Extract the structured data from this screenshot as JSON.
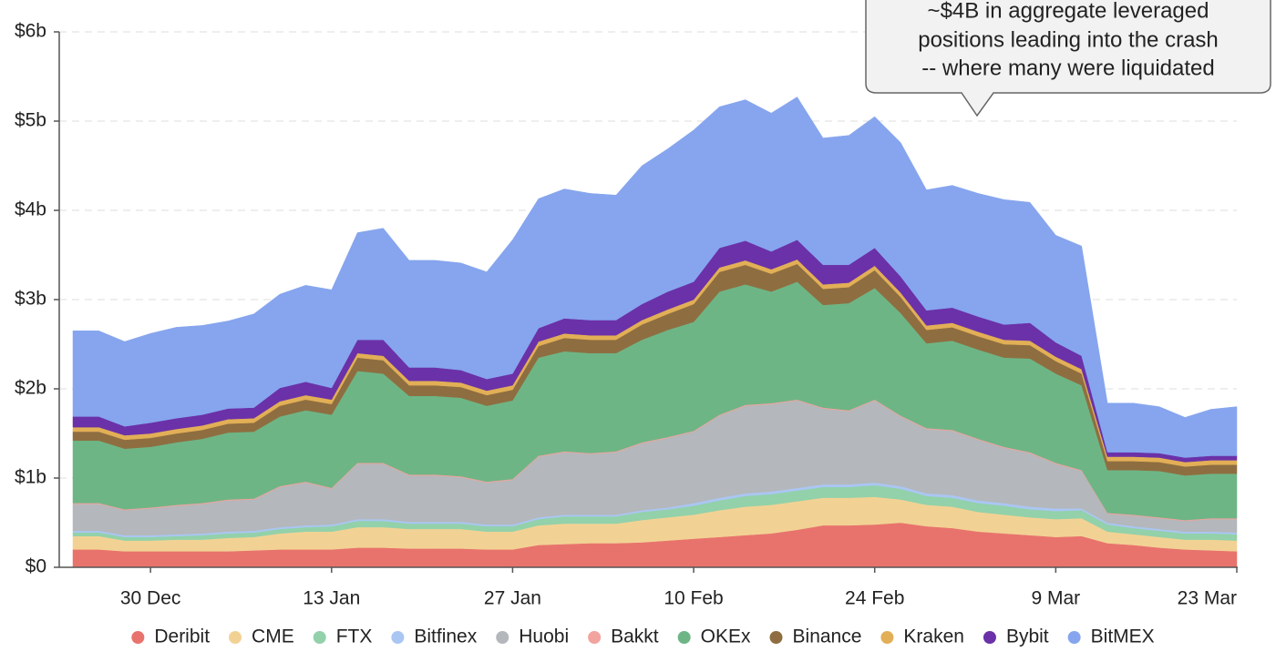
{
  "chart_data": {
    "type": "area",
    "stacked": true,
    "annotation": [
      "~$4B in aggregate leveraged",
      "positions leading into the crash",
      "-- where many were liquidated"
    ],
    "categories": [
      null,
      null,
      null,
      "30 Dec",
      null,
      null,
      null,
      null,
      null,
      null,
      "13 Jan",
      null,
      null,
      null,
      null,
      null,
      null,
      "27 Jan",
      null,
      null,
      null,
      null,
      null,
      null,
      "10 Feb",
      null,
      null,
      null,
      null,
      null,
      null,
      "24 Feb",
      null,
      null,
      null,
      null,
      null,
      null,
      "9 Mar",
      null,
      null,
      null,
      null,
      null,
      null,
      "23 Mar"
    ],
    "ylim": [
      0,
      6
    ],
    "yticks": [
      {
        "value": 0,
        "label": "$0"
      },
      {
        "value": 1,
        "label": "$1b"
      },
      {
        "value": 2,
        "label": "$2b"
      },
      {
        "value": 3,
        "label": "$3b"
      },
      {
        "value": 4,
        "label": "$4b"
      },
      {
        "value": 5,
        "label": "$5b"
      },
      {
        "value": 6,
        "label": "$6b"
      }
    ],
    "grid": true,
    "legend": "bottom",
    "series": [
      {
        "name": "Deribit",
        "color": "#e8736d",
        "values": [
          0.2,
          0.2,
          0.18,
          0.18,
          0.18,
          0.18,
          0.18,
          0.19,
          0.2,
          0.2,
          0.2,
          0.22,
          0.22,
          0.21,
          0.21,
          0.21,
          0.2,
          0.2,
          0.25,
          0.26,
          0.27,
          0.27,
          0.28,
          0.3,
          0.32,
          0.34,
          0.36,
          0.38,
          0.42,
          0.47,
          0.47,
          0.48,
          0.5,
          0.46,
          0.44,
          0.4,
          0.38,
          0.36,
          0.34,
          0.35,
          0.27,
          0.25,
          0.22,
          0.2,
          0.19,
          0.18
        ]
      },
      {
        "name": "CME",
        "color": "#f2d294",
        "values": [
          0.15,
          0.15,
          0.12,
          0.12,
          0.13,
          0.13,
          0.15,
          0.15,
          0.18,
          0.2,
          0.2,
          0.23,
          0.23,
          0.22,
          0.22,
          0.22,
          0.2,
          0.2,
          0.22,
          0.23,
          0.22,
          0.22,
          0.25,
          0.26,
          0.27,
          0.3,
          0.32,
          0.32,
          0.32,
          0.31,
          0.31,
          0.31,
          0.26,
          0.24,
          0.24,
          0.22,
          0.21,
          0.2,
          0.2,
          0.2,
          0.13,
          0.12,
          0.12,
          0.11,
          0.12,
          0.12
        ]
      },
      {
        "name": "FTX",
        "color": "#92d1aa",
        "values": [
          0.04,
          0.04,
          0.04,
          0.04,
          0.04,
          0.05,
          0.05,
          0.05,
          0.05,
          0.05,
          0.06,
          0.07,
          0.07,
          0.06,
          0.06,
          0.06,
          0.06,
          0.06,
          0.07,
          0.08,
          0.08,
          0.08,
          0.09,
          0.09,
          0.1,
          0.11,
          0.12,
          0.12,
          0.12,
          0.12,
          0.12,
          0.13,
          0.12,
          0.1,
          0.1,
          0.1,
          0.1,
          0.09,
          0.09,
          0.09,
          0.08,
          0.07,
          0.07,
          0.07,
          0.07,
          0.07
        ]
      },
      {
        "name": "Bitfinex",
        "color": "#aac6f2",
        "values": [
          0.02,
          0.02,
          0.02,
          0.02,
          0.02,
          0.02,
          0.02,
          0.02,
          0.02,
          0.02,
          0.02,
          0.02,
          0.02,
          0.02,
          0.02,
          0.02,
          0.02,
          0.02,
          0.02,
          0.02,
          0.02,
          0.02,
          0.02,
          0.02,
          0.03,
          0.03,
          0.03,
          0.03,
          0.03,
          0.03,
          0.03,
          0.03,
          0.03,
          0.03,
          0.03,
          0.03,
          0.03,
          0.03,
          0.03,
          0.02,
          0.02,
          0.02,
          0.02,
          0.02,
          0.02,
          0.02
        ]
      },
      {
        "name": "Huobi",
        "color": "#b4b7bb",
        "values": [
          0.3,
          0.3,
          0.28,
          0.3,
          0.32,
          0.33,
          0.35,
          0.35,
          0.45,
          0.48,
          0.4,
          0.62,
          0.62,
          0.52,
          0.52,
          0.5,
          0.47,
          0.5,
          0.68,
          0.7,
          0.68,
          0.7,
          0.75,
          0.78,
          0.8,
          0.92,
          0.98,
          0.98,
          0.98,
          0.85,
          0.82,
          0.92,
          0.78,
          0.72,
          0.72,
          0.68,
          0.62,
          0.6,
          0.5,
          0.42,
          0.1,
          0.12,
          0.12,
          0.12,
          0.14,
          0.15
        ]
      },
      {
        "name": "Bakkt",
        "color": "#f2a39d",
        "values": [
          0.01,
          0.01,
          0.01,
          0.01,
          0.01,
          0.01,
          0.01,
          0.01,
          0.01,
          0.01,
          0.01,
          0.01,
          0.01,
          0.01,
          0.01,
          0.01,
          0.01,
          0.01,
          0.01,
          0.01,
          0.01,
          0.01,
          0.01,
          0.01,
          0.01,
          0.01,
          0.01,
          0.01,
          0.01,
          0.01,
          0.01,
          0.01,
          0.01,
          0.01,
          0.01,
          0.01,
          0.01,
          0.01,
          0.01,
          0.01,
          0.01,
          0.01,
          0.01,
          0.01,
          0.01,
          0.01
        ]
      },
      {
        "name": "OKEx",
        "color": "#6eb586",
        "values": [
          0.7,
          0.7,
          0.68,
          0.68,
          0.7,
          0.72,
          0.75,
          0.75,
          0.78,
          0.8,
          0.82,
          1.03,
          1.0,
          0.88,
          0.88,
          0.88,
          0.85,
          0.88,
          1.1,
          1.12,
          1.12,
          1.1,
          1.15,
          1.2,
          1.22,
          1.38,
          1.35,
          1.25,
          1.32,
          1.15,
          1.2,
          1.25,
          1.15,
          0.95,
          1.0,
          1.0,
          1.0,
          1.05,
          1.0,
          0.95,
          0.48,
          0.5,
          0.52,
          0.5,
          0.5,
          0.5
        ]
      },
      {
        "name": "Binance",
        "color": "#8e6e40",
        "values": [
          0.1,
          0.1,
          0.1,
          0.1,
          0.1,
          0.1,
          0.1,
          0.1,
          0.12,
          0.12,
          0.12,
          0.15,
          0.15,
          0.12,
          0.12,
          0.12,
          0.12,
          0.12,
          0.13,
          0.15,
          0.15,
          0.15,
          0.17,
          0.18,
          0.2,
          0.22,
          0.22,
          0.2,
          0.2,
          0.18,
          0.18,
          0.2,
          0.18,
          0.15,
          0.15,
          0.15,
          0.15,
          0.15,
          0.14,
          0.13,
          0.1,
          0.1,
          0.1,
          0.1,
          0.1,
          0.1
        ]
      },
      {
        "name": "Kraken",
        "color": "#e2af56",
        "values": [
          0.05,
          0.05,
          0.05,
          0.05,
          0.05,
          0.05,
          0.05,
          0.05,
          0.05,
          0.05,
          0.05,
          0.05,
          0.05,
          0.05,
          0.05,
          0.05,
          0.05,
          0.05,
          0.05,
          0.05,
          0.05,
          0.05,
          0.05,
          0.05,
          0.05,
          0.05,
          0.05,
          0.05,
          0.05,
          0.05,
          0.05,
          0.05,
          0.05,
          0.05,
          0.05,
          0.05,
          0.05,
          0.05,
          0.05,
          0.05,
          0.05,
          0.05,
          0.05,
          0.05,
          0.05,
          0.05
        ]
      },
      {
        "name": "Bybit",
        "color": "#6b31a8",
        "values": [
          0.12,
          0.12,
          0.1,
          0.12,
          0.12,
          0.12,
          0.12,
          0.12,
          0.15,
          0.15,
          0.13,
          0.15,
          0.18,
          0.15,
          0.15,
          0.14,
          0.13,
          0.13,
          0.15,
          0.17,
          0.17,
          0.17,
          0.18,
          0.2,
          0.2,
          0.22,
          0.22,
          0.2,
          0.22,
          0.22,
          0.2,
          0.2,
          0.18,
          0.17,
          0.17,
          0.17,
          0.17,
          0.2,
          0.16,
          0.15,
          0.05,
          0.05,
          0.05,
          0.05,
          0.05,
          0.05
        ]
      },
      {
        "name": "BitMEX",
        "color": "#86a5ee",
        "values": [
          0.96,
          0.96,
          0.95,
          1.0,
          1.02,
          1.0,
          0.98,
          1.05,
          1.05,
          1.08,
          1.1,
          1.2,
          1.25,
          1.2,
          1.2,
          1.2,
          1.2,
          1.5,
          1.45,
          1.45,
          1.42,
          1.4,
          1.55,
          1.6,
          1.7,
          1.58,
          1.58,
          1.55,
          1.6,
          1.42,
          1.45,
          1.47,
          1.5,
          1.35,
          1.37,
          1.38,
          1.4,
          1.35,
          1.2,
          1.23,
          0.55,
          0.55,
          0.52,
          0.45,
          0.52,
          0.55
        ]
      }
    ]
  }
}
